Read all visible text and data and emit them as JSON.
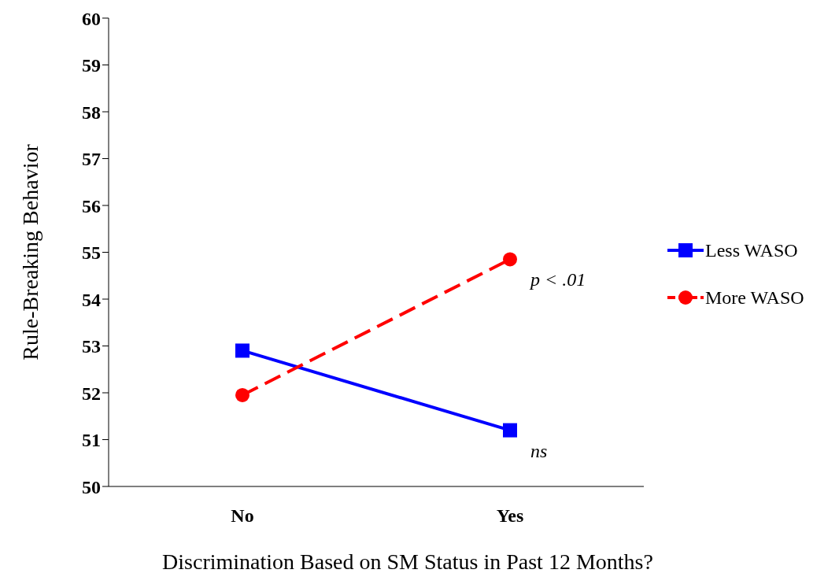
{
  "chart_data": {
    "type": "line",
    "xlabel": "Discrimination Based on SM Status in Past 12 Months?",
    "ylabel": "Rule-Breaking Behavior",
    "categories": [
      "No",
      "Yes"
    ],
    "series": [
      {
        "name": "Less WASO",
        "color": "#0000ff",
        "values": [
          52.9,
          51.2
        ],
        "marker": "square",
        "line_style": "solid"
      },
      {
        "name": "More WASO",
        "color": "#ff0000",
        "values": [
          51.95,
          54.85
        ],
        "marker": "circle",
        "line_style": "dashed"
      }
    ],
    "ylim": [
      50,
      60
    ],
    "yticks": [
      50,
      51,
      52,
      53,
      54,
      55,
      56,
      57,
      58,
      59,
      60
    ],
    "grid": false,
    "legend": "right",
    "annotations": [
      {
        "text": "p < .01",
        "x": "Yes",
        "y": 54.85
      },
      {
        "text": "ns",
        "x": "Yes",
        "y": 51.2
      }
    ]
  }
}
